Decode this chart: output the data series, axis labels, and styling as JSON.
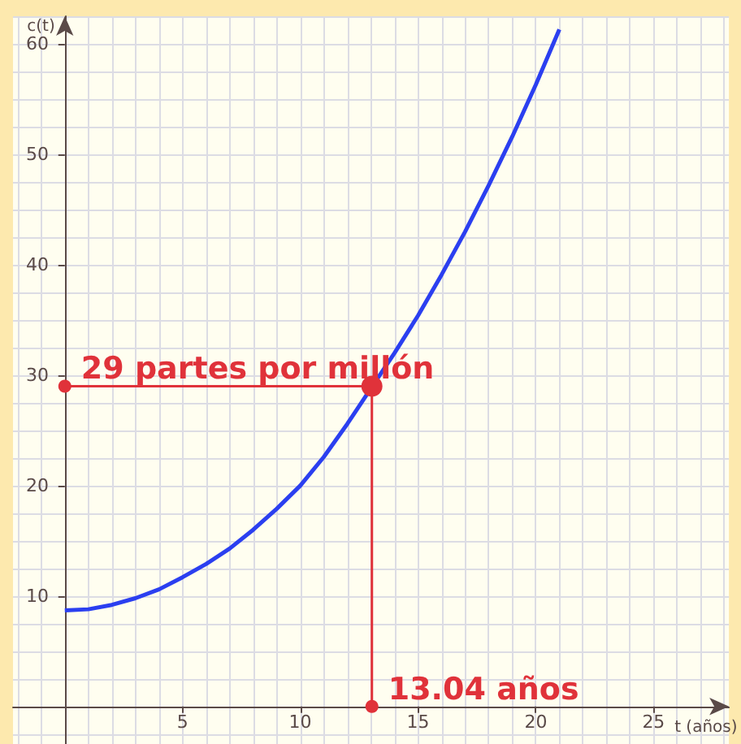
{
  "chart_data": {
    "type": "line",
    "xlabel": "t (años)",
    "ylabel": "c(t)",
    "xlim": [
      -2.2,
      28.2
    ],
    "ylim": [
      -3.4,
      62.5
    ],
    "xticks": [
      5,
      10,
      15,
      20,
      25
    ],
    "yticks": [
      10,
      20,
      30,
      40,
      50,
      60
    ],
    "grid": true,
    "series": [
      {
        "color": "#2b3ff0",
        "marker": "none",
        "x": [
          0,
          1,
          2,
          3,
          4,
          5,
          6,
          7,
          8,
          9,
          10,
          11,
          12,
          13,
          14,
          15,
          16,
          17,
          18,
          19,
          20,
          21
        ],
        "values": [
          8.7,
          8.8,
          9.2,
          9.8,
          10.6,
          11.7,
          12.9,
          14.3,
          16.0,
          17.9,
          20.0,
          22.6,
          25.6,
          28.8,
          32.0,
          35.4,
          39.1,
          43.0,
          47.2,
          51.6,
          56.3,
          61.3
        ]
      },
      {
        "color": "#e0323a",
        "marker": "circle",
        "x": [
          0,
          13.04,
          13.04
        ],
        "values": [
          29,
          29,
          0
        ]
      }
    ],
    "annotations": [
      {
        "text": "29 partes por millón",
        "x": 0,
        "y": 29
      },
      {
        "text": "13.04 años",
        "x": 13.04,
        "y": 0
      }
    ]
  }
}
